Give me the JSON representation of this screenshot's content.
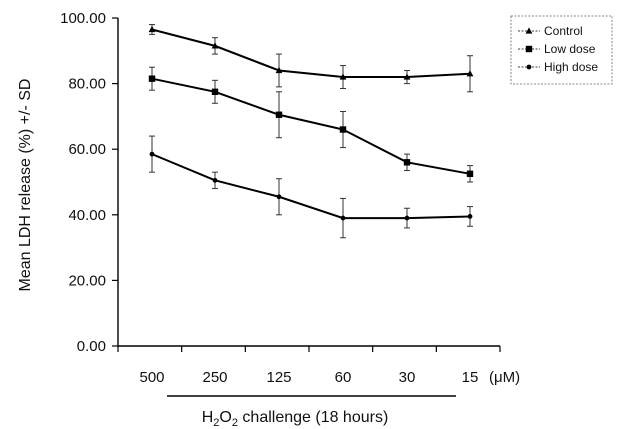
{
  "chart_data": {
    "type": "line",
    "categories": [
      "500",
      "250",
      "125",
      "60",
      "30",
      "15"
    ],
    "x_unit": "(μM)",
    "ylabel": "Mean LDH release (%) +/- SD",
    "xlabel_parts": [
      "H",
      "2",
      "O",
      "2",
      " challenge (18 hours)"
    ],
    "ylim": [
      0,
      100
    ],
    "yticks": [
      "0.00",
      "20.00",
      "40.00",
      "60.00",
      "80.00",
      "100.00"
    ],
    "ytick_values": [
      0,
      20,
      40,
      60,
      80,
      100
    ],
    "grid": false,
    "legend_position": "top-right",
    "series": [
      {
        "name": "Control",
        "marker": "triangle",
        "values": [
          96.5,
          91.5,
          84.0,
          82.0,
          82.0,
          83.0
        ],
        "errors": [
          1.5,
          2.5,
          5.0,
          3.5,
          2.0,
          5.5
        ]
      },
      {
        "name": "Low dose",
        "marker": "square",
        "values": [
          81.5,
          77.5,
          70.5,
          66.0,
          56.0,
          52.5
        ],
        "errors": [
          3.5,
          3.5,
          7.0,
          5.5,
          2.5,
          2.5
        ]
      },
      {
        "name": "High dose",
        "marker": "circle",
        "values": [
          58.5,
          50.5,
          45.5,
          39.0,
          39.0,
          39.5
        ],
        "errors": [
          5.5,
          2.5,
          5.5,
          6.0,
          3.0,
          3.0
        ]
      }
    ]
  }
}
